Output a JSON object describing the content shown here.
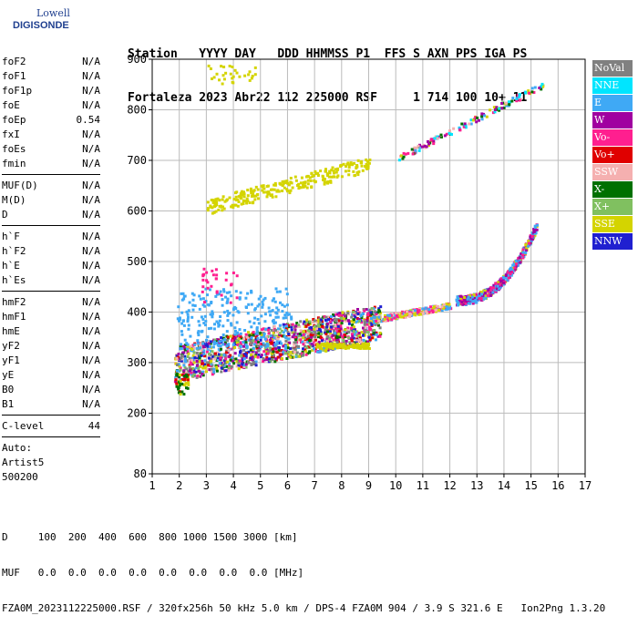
{
  "logo": {
    "line1": "Lowell",
    "line2": "DIGISONDE"
  },
  "header": {
    "line1": "Station   YYYY DAY   DDD HHMMSS P1  FFS S AXN PPS IGA PS",
    "line2": "Fortaleza 2023 Abr22 112 225000 RSF     1 714 100 10+ 11"
  },
  "params": {
    "group1": [
      {
        "label": "foF2",
        "value": "N/A"
      },
      {
        "label": "foF1",
        "value": "N/A"
      },
      {
        "label": "foF1p",
        "value": "N/A"
      },
      {
        "label": "foE",
        "value": "N/A"
      },
      {
        "label": "foEp",
        "value": "0.54"
      },
      {
        "label": "fxI",
        "value": "N/A"
      },
      {
        "label": "foEs",
        "value": "N/A"
      },
      {
        "label": "fmin",
        "value": "N/A"
      }
    ],
    "group2": [
      {
        "label": "MUF(D)",
        "value": "N/A"
      },
      {
        "label": "M(D)",
        "value": "N/A"
      },
      {
        "label": "D",
        "value": "N/A"
      }
    ],
    "group3": [
      {
        "label": "h`F",
        "value": "N/A"
      },
      {
        "label": "h`F2",
        "value": "N/A"
      },
      {
        "label": "h`E",
        "value": "N/A"
      },
      {
        "label": "h`Es",
        "value": "N/A"
      }
    ],
    "group4": [
      {
        "label": "hmF2",
        "value": "N/A"
      },
      {
        "label": "hmF1",
        "value": "N/A"
      },
      {
        "label": "hmE",
        "value": "N/A"
      },
      {
        "label": "yF2",
        "value": "N/A"
      },
      {
        "label": "yF1",
        "value": "N/A"
      },
      {
        "label": "yE",
        "value": "N/A"
      },
      {
        "label": "B0",
        "value": "N/A"
      },
      {
        "label": "B1",
        "value": "N/A"
      }
    ],
    "group5": [
      {
        "label": "C-level",
        "value": "44"
      }
    ]
  },
  "auto": {
    "line1": "Auto:",
    "line2": "Artist5",
    "line3": "500200"
  },
  "legend": [
    {
      "label": "NoVal",
      "color": "#808080"
    },
    {
      "label": "NNE",
      "color": "#00e5ff"
    },
    {
      "label": "E",
      "color": "#3fa9f5"
    },
    {
      "label": "W",
      "color": "#a000a0"
    },
    {
      "label": "Vo-",
      "color": "#ff1f8f"
    },
    {
      "label": "Vo+",
      "color": "#e00000"
    },
    {
      "label": "SSW",
      "color": "#f5b0b0"
    },
    {
      "label": "X-",
      "color": "#007000"
    },
    {
      "label": "X+",
      "color": "#80c060"
    },
    {
      "label": "SSE",
      "color": "#d4d400"
    },
    {
      "label": "NNW",
      "color": "#2020d0"
    }
  ],
  "plot": {
    "x_ticks": [
      "1",
      "2",
      "3",
      "4",
      "5",
      "6",
      "7",
      "8",
      "9",
      "10",
      "11",
      "12",
      "13",
      "14",
      "15",
      "16",
      "17"
    ],
    "y_ticks": [
      "900",
      "800",
      "700",
      "600",
      "500",
      "400",
      "300",
      "200",
      "80"
    ]
  },
  "footer": {
    "line1": "D     100  200  400  600  800 1000 1500 3000 [km]",
    "line2": "MUF   0.0  0.0  0.0  0.0  0.0  0.0  0.0  0.0 [MHz]",
    "line3": "FZA0M_2023112225000.RSF / 320fx256h 50 kHz 5.0 km / DPS-4 FZA0M 904 / 3.9 S 321.6 E   Ion2Png 1.3.20"
  }
}
